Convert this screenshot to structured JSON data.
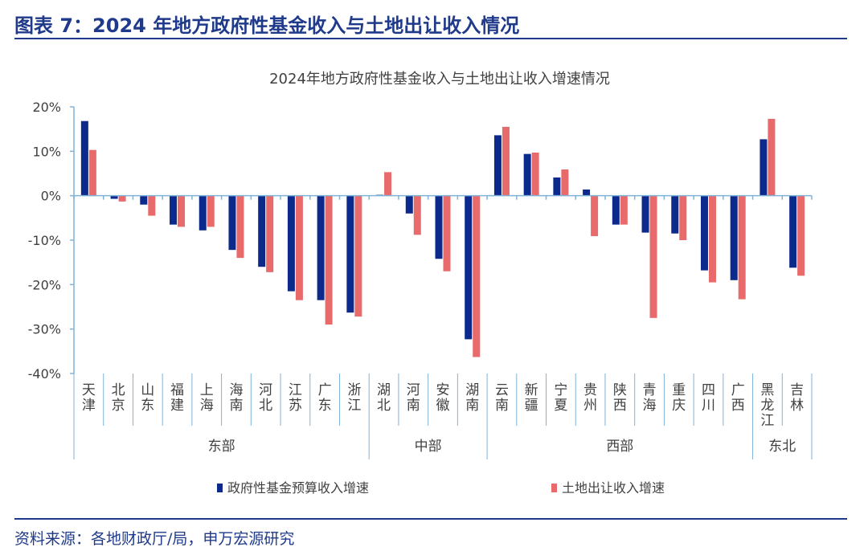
{
  "page": {
    "title": "图表 7：2024 年地方政府性基金收入与土地出让收入情况",
    "source": "资料来源：各地财政厅/局，申万宏源研究"
  },
  "chart_data": {
    "type": "bar",
    "title": "2024年地方政府性基金收入与土地出让收入增速情况",
    "xlabel": "",
    "ylabel": "",
    "ylim": [
      -40,
      20
    ],
    "yticks": [
      20,
      10,
      0,
      -10,
      -20,
      -30,
      -40
    ],
    "ytick_labels": [
      "20%",
      "10%",
      "0%",
      "-10%",
      "-20%",
      "-30%",
      "-40%"
    ],
    "value_unit": "%",
    "grid": false,
    "legend_position": "bottom",
    "categories": [
      "天津",
      "北京",
      "山东",
      "福建",
      "上海",
      "海南",
      "河北",
      "江苏",
      "广东",
      "浙江",
      "湖北",
      "河南",
      "安徽",
      "湖南",
      "云南",
      "新疆",
      "宁夏",
      "贵州",
      "陕西",
      "青海",
      "重庆",
      "四川",
      "广西",
      "黑龙江",
      "吉林"
    ],
    "groups": [
      {
        "label": "东部",
        "start": 0,
        "end": 9
      },
      {
        "label": "中部",
        "start": 10,
        "end": 13
      },
      {
        "label": "西部",
        "start": 14,
        "end": 22
      },
      {
        "label": "东北",
        "start": 23,
        "end": 24
      }
    ],
    "series": [
      {
        "name": "政府性基金预算收入增速",
        "color": "#0b2a8c",
        "values": [
          16.8,
          -0.7,
          -2.0,
          -6.5,
          -7.8,
          -12.2,
          -16.0,
          -21.5,
          -23.5,
          -26.3,
          0.2,
          -4.0,
          -14.2,
          -32.3,
          13.6,
          9.4,
          4.1,
          1.4,
          -6.5,
          -8.3,
          -8.5,
          -16.8,
          -19.0,
          12.7,
          -16.2
        ]
      },
      {
        "name": "土地出让收入增速",
        "color": "#e86a6a",
        "values": [
          10.3,
          -1.3,
          -4.5,
          -7.0,
          -7.0,
          -14.0,
          -17.2,
          -23.5,
          -29.0,
          -27.2,
          5.3,
          -8.8,
          -17.0,
          -36.3,
          15.5,
          9.7,
          5.9,
          -9.1,
          -6.5,
          -27.5,
          -10.0,
          -19.5,
          -23.3,
          17.3,
          -18.0
        ]
      }
    ]
  }
}
